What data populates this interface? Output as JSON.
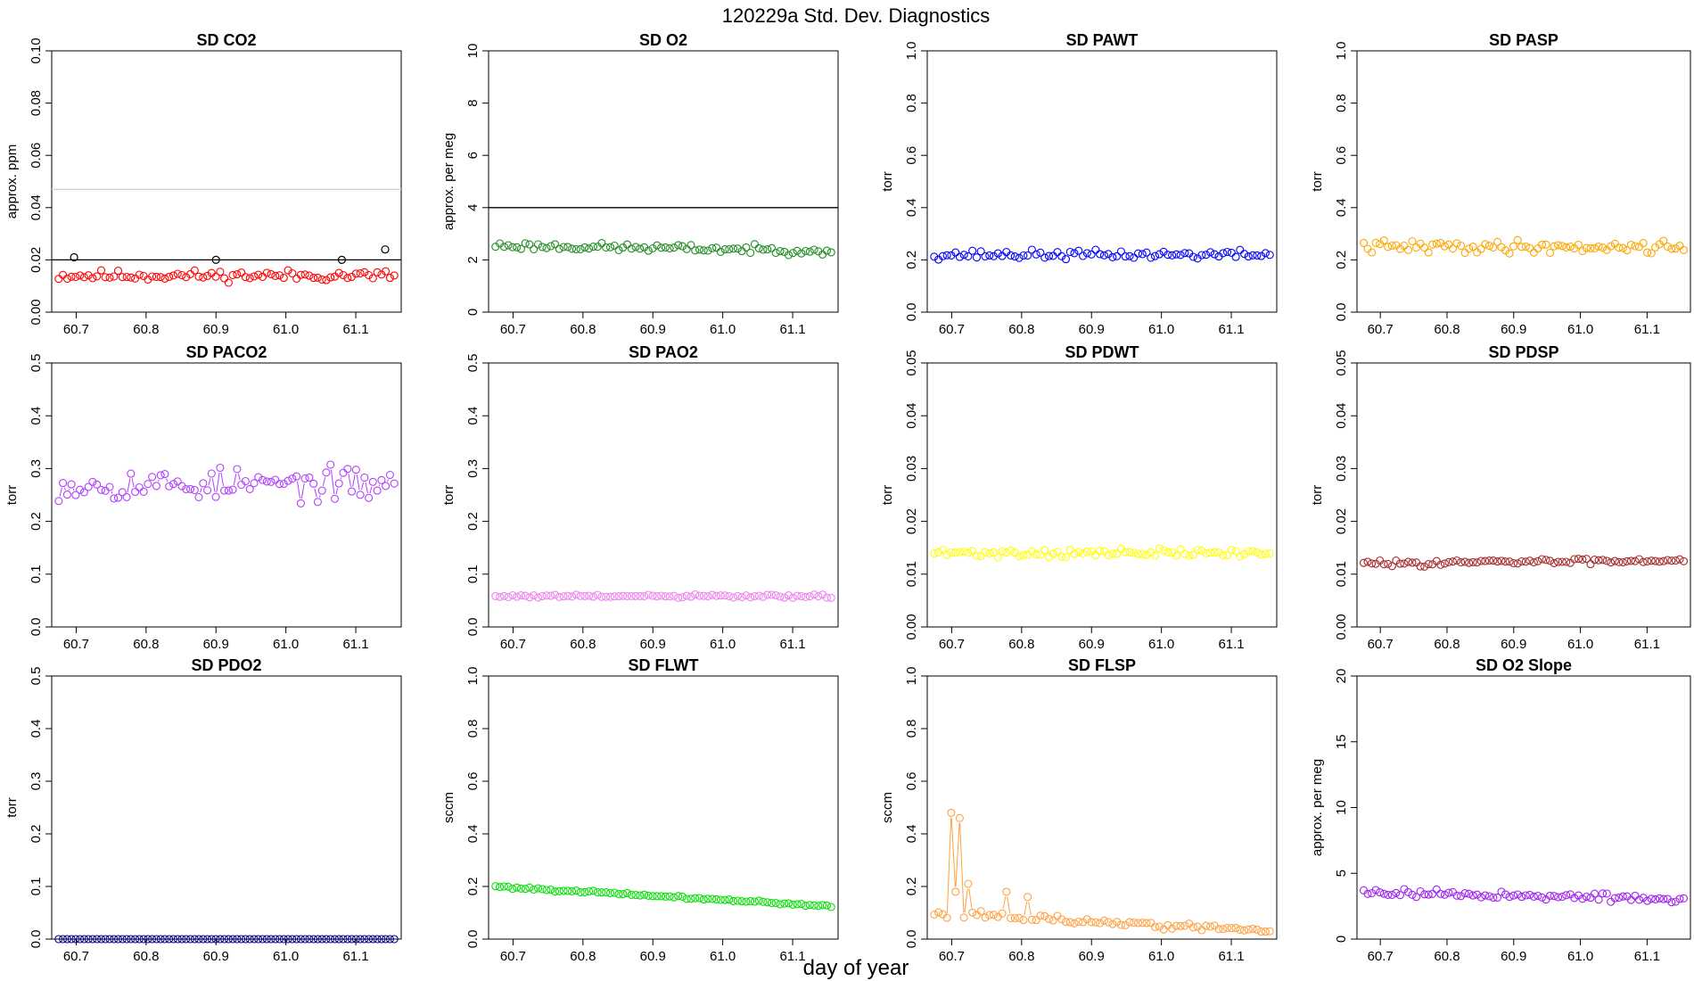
{
  "figure": {
    "title": "120229a   Std. Dev. Diagnostics",
    "xlabel": "day of year"
  },
  "chart_data": [
    {
      "type": "scatter",
      "title": "SD CO2",
      "ylabel": "approx. ppm",
      "color": "#ff0000",
      "ylim": [
        0,
        0.1
      ],
      "yticks": [
        0,
        0.02,
        0.04,
        0.06,
        0.08,
        0.1
      ],
      "yticklabels": [
        "0.00",
        "0.02",
        "0.04",
        "0.06",
        "0.08",
        "0.10"
      ],
      "xlim": [
        60.665,
        61.165
      ],
      "xticks": [
        60.7,
        60.8,
        60.9,
        61.0,
        61.1
      ],
      "xticklabels": [
        "60.7",
        "60.8",
        "60.9",
        "61.0",
        "61.1"
      ],
      "x_start": 60.675,
      "x_end": 61.155,
      "base": 0.014,
      "noise": 0.003,
      "trend": 0,
      "hlines": [
        {
          "y": 0.02,
          "color": "#000000"
        },
        {
          "y": 0.047,
          "color": "#d3d3d3"
        }
      ],
      "highlights": [
        {
          "x": 60.697,
          "y": 0.021
        },
        {
          "x": 60.9,
          "y": 0.02
        },
        {
          "x": 61.08,
          "y": 0.02
        },
        {
          "x": 61.142,
          "y": 0.024
        }
      ],
      "seed": 11
    },
    {
      "type": "scatter",
      "title": "SD O2",
      "ylabel": "approx. per meg",
      "color": "#228b22",
      "ylim": [
        0,
        10
      ],
      "yticks": [
        0,
        2,
        4,
        6,
        8,
        10
      ],
      "yticklabels": [
        "0",
        "2",
        "4",
        "6",
        "8",
        "10"
      ],
      "xlim": [
        60.665,
        61.165
      ],
      "xticks": [
        60.7,
        60.8,
        60.9,
        61.0,
        61.1
      ],
      "xticklabels": [
        "60.7",
        "60.8",
        "60.9",
        "61.0",
        "61.1"
      ],
      "x_start": 60.675,
      "x_end": 61.155,
      "base": 2.55,
      "noise": 0.22,
      "trend": -0.2,
      "hlines": [
        {
          "y": 4,
          "color": "#000000"
        }
      ],
      "seed": 23
    },
    {
      "type": "scatter",
      "title": "SD PAWT",
      "ylabel": "torr",
      "color": "#0000ff",
      "ylim": [
        0,
        1
      ],
      "yticks": [
        0,
        0.2,
        0.4,
        0.6,
        0.8,
        1
      ],
      "yticklabels": [
        "0.0",
        "0.2",
        "0.4",
        "0.6",
        "0.8",
        "1.0"
      ],
      "xlim": [
        60.665,
        61.165
      ],
      "xticks": [
        60.7,
        60.8,
        60.9,
        61.0,
        61.1
      ],
      "xticklabels": [
        "60.7",
        "60.8",
        "60.9",
        "61.0",
        "61.1"
      ],
      "x_start": 60.675,
      "x_end": 61.155,
      "base": 0.22,
      "noise": 0.025,
      "trend": 0,
      "seed": 37
    },
    {
      "type": "scatter",
      "title": "SD PASP",
      "ylabel": "torr",
      "color": "#ffa500",
      "ylim": [
        0,
        1
      ],
      "yticks": [
        0,
        0.2,
        0.4,
        0.6,
        0.8,
        1
      ],
      "yticklabels": [
        "0.0",
        "0.2",
        "0.4",
        "0.6",
        "0.8",
        "1.0"
      ],
      "xlim": [
        60.665,
        61.165
      ],
      "xticks": [
        60.7,
        60.8,
        60.9,
        61.0,
        61.1
      ],
      "xticklabels": [
        "60.7",
        "60.8",
        "60.9",
        "61.0",
        "61.1"
      ],
      "x_start": 60.675,
      "x_end": 61.155,
      "base": 0.25,
      "noise": 0.035,
      "trend": 0,
      "seed": 41
    },
    {
      "type": "scatter",
      "title": "SD PACO2",
      "ylabel": "torr",
      "color": "#b040ff",
      "ylim": [
        0,
        0.5
      ],
      "yticks": [
        0,
        0.1,
        0.2,
        0.3,
        0.4,
        0.5
      ],
      "yticklabels": [
        "0.0",
        "0.1",
        "0.2",
        "0.3",
        "0.4",
        "0.5"
      ],
      "xlim": [
        60.665,
        61.165
      ],
      "xticks": [
        60.7,
        60.8,
        60.9,
        61.0,
        61.1
      ],
      "xticklabels": [
        "60.7",
        "60.8",
        "60.9",
        "61.0",
        "61.1"
      ],
      "x_start": 60.675,
      "x_end": 61.155,
      "base": 0.27,
      "noise": 0.045,
      "trend": 0,
      "seed": 53
    },
    {
      "type": "scatter",
      "title": "SD PAO2",
      "ylabel": "torr",
      "color": "#ee82ee",
      "ylim": [
        0,
        0.5
      ],
      "yticks": [
        0,
        0.1,
        0.2,
        0.3,
        0.4,
        0.5
      ],
      "yticklabels": [
        "0.0",
        "0.1",
        "0.2",
        "0.3",
        "0.4",
        "0.5"
      ],
      "xlim": [
        60.665,
        61.165
      ],
      "xticks": [
        60.7,
        60.8,
        60.9,
        61.0,
        61.1
      ],
      "xticklabels": [
        "60.7",
        "60.8",
        "60.9",
        "61.0",
        "61.1"
      ],
      "x_start": 60.675,
      "x_end": 61.155,
      "base": 0.058,
      "noise": 0.005,
      "trend": 0,
      "seed": 61
    },
    {
      "type": "scatter",
      "title": "SD PDWT",
      "ylabel": "torr",
      "color": "#ffff00",
      "ylim": [
        0,
        0.05
      ],
      "yticks": [
        0,
        0.01,
        0.02,
        0.03,
        0.04,
        0.05
      ],
      "yticklabels": [
        "0.00",
        "0.01",
        "0.02",
        "0.03",
        "0.04",
        "0.05"
      ],
      "xlim": [
        60.665,
        61.165
      ],
      "xticks": [
        60.7,
        60.8,
        60.9,
        61.0,
        61.1
      ],
      "xticklabels": [
        "60.7",
        "60.8",
        "60.9",
        "61.0",
        "61.1"
      ],
      "x_start": 60.675,
      "x_end": 61.155,
      "base": 0.014,
      "noise": 0.0012,
      "trend": 0,
      "seed": 71
    },
    {
      "type": "scatter",
      "title": "SD PDSP",
      "ylabel": "torr",
      "color": "#a52a2a",
      "ylim": [
        0,
        0.05
      ],
      "yticks": [
        0,
        0.01,
        0.02,
        0.03,
        0.04,
        0.05
      ],
      "yticklabels": [
        "0.00",
        "0.01",
        "0.02",
        "0.03",
        "0.04",
        "0.05"
      ],
      "xlim": [
        60.665,
        61.165
      ],
      "xticks": [
        60.7,
        60.8,
        60.9,
        61.0,
        61.1
      ],
      "xticklabels": [
        "60.7",
        "60.8",
        "60.9",
        "61.0",
        "61.1"
      ],
      "x_start": 60.675,
      "x_end": 61.155,
      "base": 0.012,
      "noise": 0.0008,
      "trend": 0.0007,
      "seed": 83
    },
    {
      "type": "scatter",
      "title": "SD PDO2",
      "ylabel": "torr",
      "color": "#00008b",
      "ylim": [
        0,
        0.5
      ],
      "yticks": [
        0,
        0.1,
        0.2,
        0.3,
        0.4,
        0.5
      ],
      "yticklabels": [
        "0.0",
        "0.1",
        "0.2",
        "0.3",
        "0.4",
        "0.5"
      ],
      "xlim": [
        60.665,
        61.165
      ],
      "xticks": [
        60.7,
        60.8,
        60.9,
        61.0,
        61.1
      ],
      "xticklabels": [
        "60.7",
        "60.8",
        "60.9",
        "61.0",
        "61.1"
      ],
      "x_start": 60.675,
      "x_end": 61.155,
      "base": 0.0,
      "noise": 0,
      "trend": 0,
      "seed": 97
    },
    {
      "type": "scatter",
      "title": "SD FLWT",
      "ylabel": "sccm",
      "color": "#00e000",
      "ylim": [
        0,
        1
      ],
      "yticks": [
        0,
        0.2,
        0.4,
        0.6,
        0.8,
        1
      ],
      "yticklabels": [
        "0.0",
        "0.2",
        "0.4",
        "0.6",
        "0.8",
        "1.0"
      ],
      "xlim": [
        60.665,
        61.165
      ],
      "xticks": [
        60.7,
        60.8,
        60.9,
        61.0,
        61.1
      ],
      "xticklabels": [
        "60.7",
        "60.8",
        "60.9",
        "61.0",
        "61.1"
      ],
      "x_start": 60.675,
      "x_end": 61.155,
      "base": 0.2,
      "noise": 0.007,
      "trend": -0.075,
      "seed": 101
    },
    {
      "type": "scatter",
      "title": "SD FLSP",
      "ylabel": "sccm",
      "color": "#ffa040",
      "ylim": [
        0,
        1
      ],
      "yticks": [
        0,
        0.2,
        0.4,
        0.6,
        0.8,
        1
      ],
      "yticklabels": [
        "0.0",
        "0.2",
        "0.4",
        "0.6",
        "0.8",
        "1.0"
      ],
      "xlim": [
        60.665,
        61.165
      ],
      "xticks": [
        60.7,
        60.8,
        60.9,
        61.0,
        61.1
      ],
      "xticklabels": [
        "60.7",
        "60.8",
        "60.9",
        "61.0",
        "61.1"
      ],
      "x_start": 60.675,
      "x_end": 61.155,
      "base": 0.1,
      "noise": 0.02,
      "trend": -0.07,
      "spikes": [
        {
          "x": 60.698,
          "y": 0.48
        },
        {
          "x": 60.713,
          "y": 0.46
        },
        {
          "x": 60.705,
          "y": 0.18
        },
        {
          "x": 60.722,
          "y": 0.21
        },
        {
          "x": 60.78,
          "y": 0.18
        },
        {
          "x": 60.808,
          "y": 0.16
        }
      ],
      "seed": 113
    },
    {
      "type": "scatter",
      "title": "SD O2 Slope",
      "ylabel": "approx. per meg",
      "color": "#a020f0",
      "ylim": [
        0,
        20
      ],
      "yticks": [
        0,
        5,
        10,
        15,
        20
      ],
      "yticklabels": [
        "0",
        "5",
        "10",
        "15",
        "20"
      ],
      "xlim": [
        60.665,
        61.165
      ],
      "xticks": [
        60.7,
        60.8,
        60.9,
        61.0,
        61.1
      ],
      "xticklabels": [
        "60.7",
        "60.8",
        "60.9",
        "61.0",
        "61.1"
      ],
      "x_start": 60.675,
      "x_end": 61.155,
      "base": 3.6,
      "noise": 0.45,
      "trend": -0.6,
      "seed": 127
    }
  ]
}
